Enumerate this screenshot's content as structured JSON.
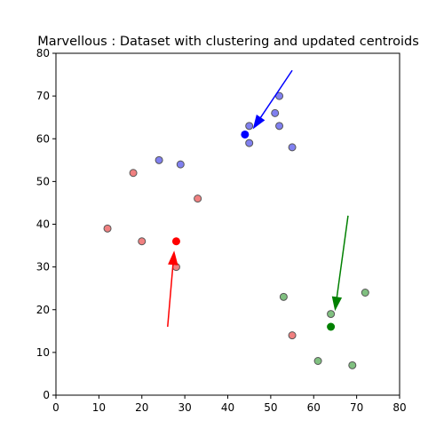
{
  "chart_data": {
    "type": "scatter",
    "title": "Marvellous : Dataset with clustering and updated centroids",
    "xlabel": "",
    "ylabel": "",
    "xlim": [
      0,
      80
    ],
    "ylim": [
      0,
      80
    ],
    "xticks": [
      0,
      10,
      20,
      30,
      40,
      50,
      60,
      70,
      80
    ],
    "yticks": [
      0,
      10,
      20,
      30,
      40,
      50,
      60,
      70,
      80
    ],
    "grid": false,
    "clusters": [
      {
        "color": "#ff0000",
        "point_color": "#f08080",
        "points": [
          [
            18,
            52
          ],
          [
            33,
            46
          ],
          [
            12,
            39
          ],
          [
            20,
            36
          ],
          [
            28,
            30
          ],
          [
            55,
            14
          ]
        ],
        "centroid": [
          28,
          36
        ],
        "arrow_from": [
          26,
          16
        ],
        "arrow_to": [
          27.5,
          33.5
        ]
      },
      {
        "color": "#0000ff",
        "point_color": "#8080f0",
        "points": [
          [
            24,
            55
          ],
          [
            29,
            54
          ],
          [
            45,
            63
          ],
          [
            45,
            59
          ],
          [
            51,
            66
          ],
          [
            52,
            70
          ],
          [
            52,
            63
          ],
          [
            55,
            58
          ]
        ],
        "centroid": [
          44,
          61
        ],
        "arrow_from": [
          55,
          76
        ],
        "arrow_to": [
          46,
          62.5
        ]
      },
      {
        "color": "#008000",
        "point_color": "#80c080",
        "points": [
          [
            53,
            23
          ],
          [
            64,
            19
          ],
          [
            72,
            24
          ],
          [
            61,
            8
          ],
          [
            69,
            7
          ]
        ],
        "centroid": [
          64,
          16
        ],
        "arrow_from": [
          68,
          42
        ],
        "arrow_to": [
          65,
          20
        ]
      }
    ]
  }
}
